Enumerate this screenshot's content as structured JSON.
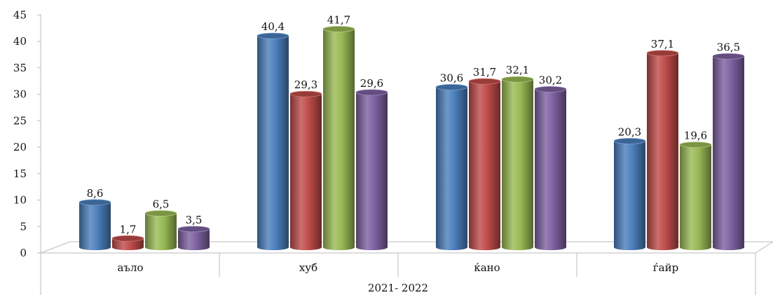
{
  "chart_data": {
    "type": "bar",
    "categories": [
      "аъло",
      "хуб",
      "ќано",
      "ѓайр"
    ],
    "group_label": "2021- 2022",
    "series": [
      {
        "color": "#4a7ebb",
        "values": [
          8.6,
          40.4,
          30.6,
          20.3
        ],
        "labels": [
          "8,6",
          "40,4",
          "30,6",
          "20,3"
        ]
      },
      {
        "color": "#be4b48",
        "values": [
          1.7,
          29.3,
          31.7,
          37.1
        ],
        "labels": [
          "1,7",
          "29,3",
          "31,7",
          "37,1"
        ]
      },
      {
        "color": "#98b954",
        "values": [
          6.5,
          41.7,
          32.1,
          19.6
        ],
        "labels": [
          "6,5",
          "41,7",
          "32,1",
          "19,6"
        ]
      },
      {
        "color": "#7d60a0",
        "values": [
          3.5,
          29.6,
          30.2,
          36.5
        ],
        "labels": [
          "3,5",
          "29,6",
          "30,2",
          "36,5"
        ]
      }
    ],
    "ylim": [
      0,
      45
    ],
    "yticks": [
      "0",
      "5",
      "10",
      "15",
      "20",
      "25",
      "30",
      "35",
      "40",
      "45"
    ],
    "grid": false,
    "legend": "none"
  }
}
